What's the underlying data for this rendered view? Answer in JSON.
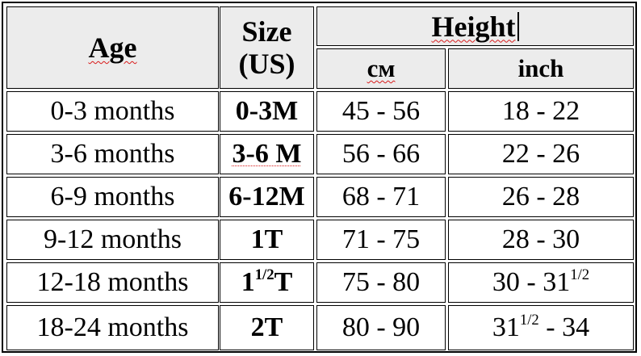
{
  "table": {
    "headers": {
      "age": "Age",
      "size_line1": "Size",
      "size_line2": "(US)",
      "height": "Height",
      "cm": "см",
      "inch": "inch"
    },
    "rows": [
      {
        "age": "0-3 months",
        "size": "0-3M",
        "cm": "45 - 56",
        "inch": "18 - 22"
      },
      {
        "age": "3-6 months",
        "size": "3-6 M",
        "cm": "56 - 66",
        "inch": "22 - 26"
      },
      {
        "age": "6-9 months",
        "size": "6-12M",
        "cm": "68 - 71",
        "inch": "26 - 28"
      },
      {
        "age": "9-12 months",
        "size": "1T",
        "cm": "71 - 75",
        "inch": "28 - 30"
      },
      {
        "age": "12-18 months",
        "size_base": "1",
        "size_sup": "1/2",
        "size_tail": "T",
        "cm": "75 - 80",
        "inch_base": "30 - 31",
        "inch_sup": "1/2"
      },
      {
        "age": "18-24 months",
        "size": "2T",
        "cm": "80 - 90",
        "inch_base": "31",
        "inch_sup": "1/2",
        "inch_tail": " - 34"
      }
    ]
  },
  "colors": {
    "header_bg": "#ececec",
    "border": "#000000",
    "spellcheck_squiggle": "#d81b1b"
  }
}
